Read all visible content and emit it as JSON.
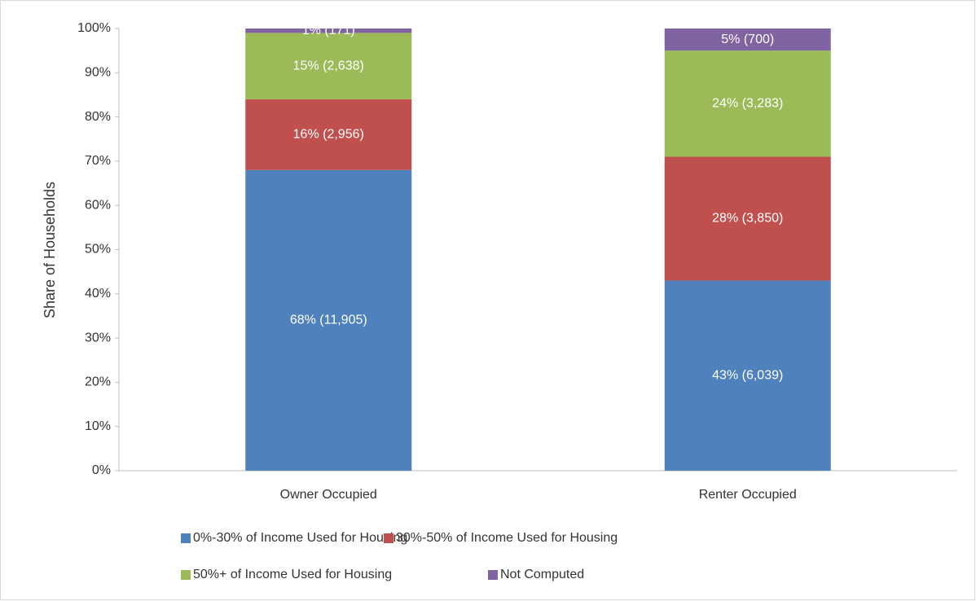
{
  "chart_data": {
    "type": "stacked_bar",
    "y_label": "Share of Households",
    "categories": [
      "Owner Occupied",
      "Renter Occupied"
    ],
    "series": [
      {
        "name": "0%-30% of Income Used for Housing",
        "color": "#4f81bd",
        "values": [
          68,
          43
        ],
        "value_labels": [
          "68% (11,905)",
          "43% (6,039)"
        ]
      },
      {
        "name": "30%-50% of Income Used for Housing",
        "color": "#c0504d",
        "values": [
          16,
          28
        ],
        "value_labels": [
          "16% (2,956)",
          "28% (3,850)"
        ]
      },
      {
        "name": "50%+ of Income Used for Housing",
        "color": "#9bbb59",
        "values": [
          15,
          24
        ],
        "value_labels": [
          "15% (2,638)",
          "24% (3,283)"
        ]
      },
      {
        "name": "Not Computed",
        "color": "#8064a2",
        "values": [
          1,
          5
        ],
        "value_labels": [
          "1% (171)",
          "5% (700)"
        ]
      }
    ],
    "ylim": [
      0,
      100
    ],
    "yticks": [
      {
        "value": 0,
        "label": "0%"
      },
      {
        "value": 10,
        "label": "10%"
      },
      {
        "value": 20,
        "label": "20%"
      },
      {
        "value": 30,
        "label": "30%"
      },
      {
        "value": 40,
        "label": "40%"
      },
      {
        "value": 50,
        "label": "50%"
      },
      {
        "value": 60,
        "label": "60%"
      },
      {
        "value": 70,
        "label": "70%"
      },
      {
        "value": 80,
        "label": "80%"
      },
      {
        "value": 90,
        "label": "90%"
      },
      {
        "value": 100,
        "label": "100%"
      }
    ],
    "grid": false,
    "legend": "bottom"
  }
}
